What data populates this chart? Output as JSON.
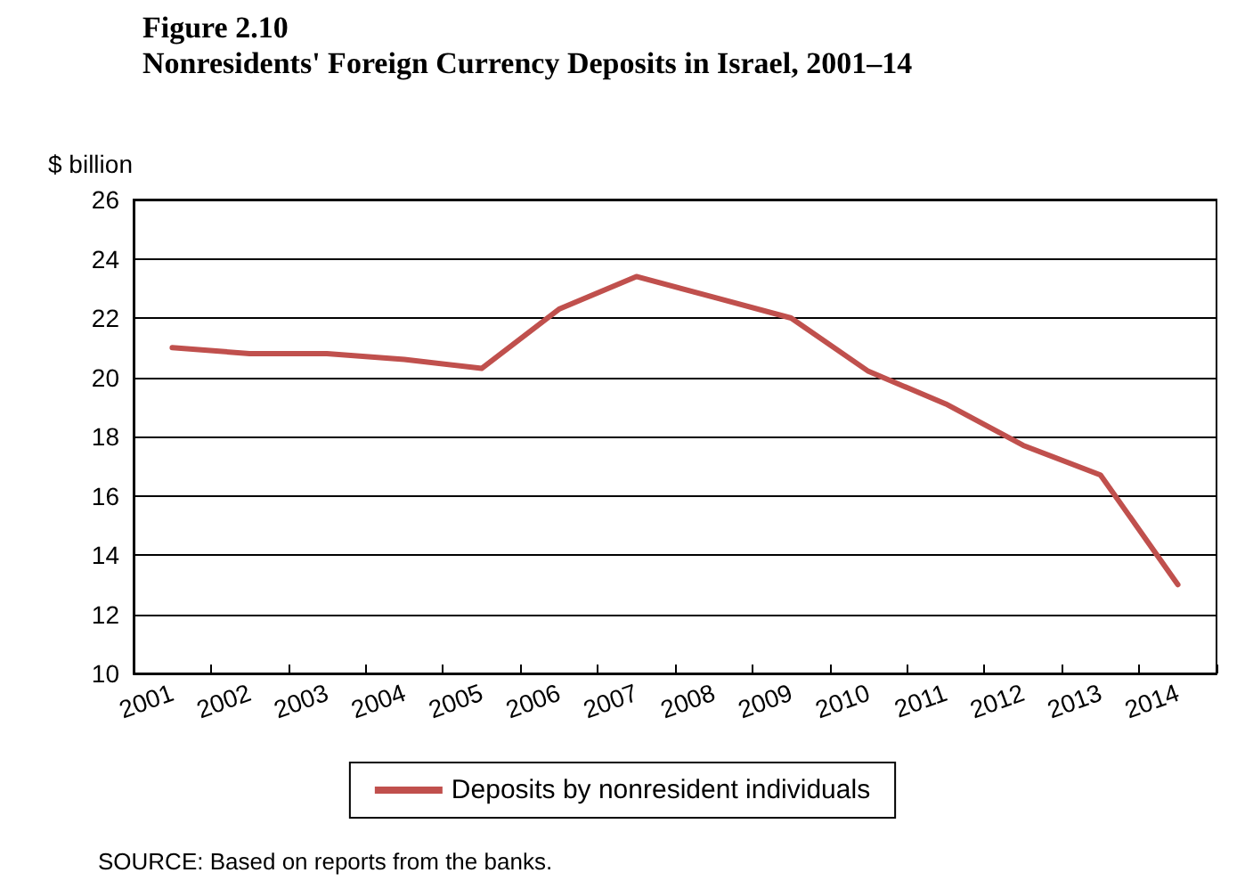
{
  "chart_data": {
    "type": "line",
    "title": "Figure 2.10",
    "subtitle": "Nonresidents' Foreign Currency Deposits in Israel, 2001–14",
    "ylabel": "$ billion",
    "categories": [
      "2001",
      "2002",
      "2003",
      "2004",
      "2005",
      "2006",
      "2007",
      "2008",
      "2009",
      "2010",
      "2011",
      "2012",
      "2013",
      "2014"
    ],
    "series": [
      {
        "name": "Deposits by nonresident individuals",
        "color": "#c0504d",
        "values": [
          21.0,
          20.8,
          20.8,
          20.6,
          20.3,
          22.3,
          23.4,
          22.7,
          22.0,
          20.2,
          19.1,
          17.7,
          16.7,
          13.0
        ]
      }
    ],
    "ylim": [
      10,
      26
    ],
    "yticks": [
      10,
      12,
      14,
      16,
      18,
      20,
      22,
      24,
      26
    ],
    "grid": "y",
    "legend": "bottom",
    "marker": "none",
    "line_style": "solid",
    "annotations": [
      "SOURCE: Based on reports from the banks."
    ]
  }
}
